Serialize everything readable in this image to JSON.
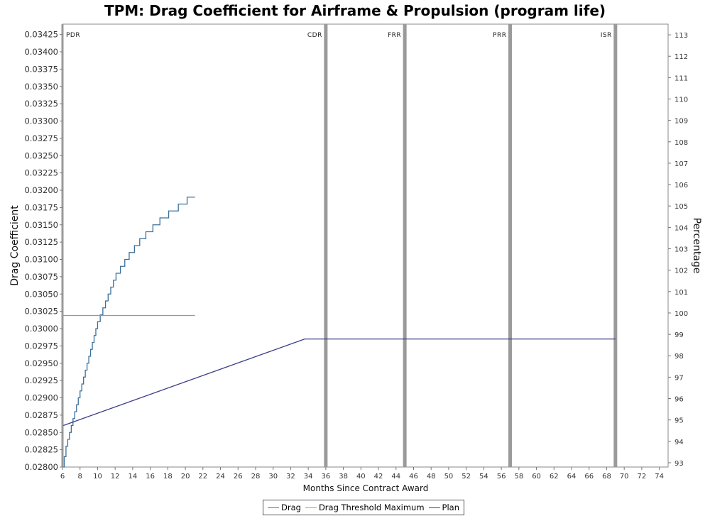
{
  "chart_data": {
    "type": "line",
    "title": "TPM: Drag Coefficient for Airframe & Propulsion (program life)",
    "xlabel": "Months Since Contract Award",
    "ylabel": "Drag Coefficient",
    "y2label": "Percentage",
    "xlim": [
      6,
      75
    ],
    "ylim": [
      0.028,
      0.0344
    ],
    "y2lim": [
      92.8,
      113.5
    ],
    "x_ticks": [
      6,
      8,
      10,
      12,
      14,
      16,
      18,
      20,
      22,
      24,
      26,
      28,
      30,
      32,
      34,
      36,
      38,
      40,
      42,
      44,
      46,
      48,
      50,
      52,
      54,
      56,
      58,
      60,
      62,
      64,
      66,
      68,
      70,
      72,
      74
    ],
    "y_ticks": [
      "0.02800",
      "0.02825",
      "0.02850",
      "0.02875",
      "0.02900",
      "0.02925",
      "0.02950",
      "0.02975",
      "0.03000",
      "0.03025",
      "0.03050",
      "0.03075",
      "0.03100",
      "0.03125",
      "0.03150",
      "0.03175",
      "0.03200",
      "0.03225",
      "0.03250",
      "0.03275",
      "0.03300",
      "0.03325",
      "0.03350",
      "0.03375",
      "0.03400",
      "0.03425"
    ],
    "y2_ticks": [
      93,
      94,
      95,
      96,
      97,
      98,
      99,
      100,
      101,
      102,
      103,
      104,
      105,
      106,
      107,
      108,
      109,
      110,
      111,
      112,
      113
    ],
    "grid": false,
    "legend_position": "bottom",
    "milestones": [
      {
        "label": "PDR",
        "x": 6
      },
      {
        "label": "CDR",
        "x": 36
      },
      {
        "label": "FRR",
        "x": 45
      },
      {
        "label": "PRR",
        "x": 57
      },
      {
        "label": "ISR",
        "x": 69
      }
    ],
    "series": [
      {
        "name": "Drag",
        "color": "#3a6f9a",
        "step": true,
        "x": [
          6.1,
          6.2,
          6.4,
          6.6,
          6.8,
          7.0,
          7.2,
          7.4,
          7.6,
          7.8,
          8.0,
          8.2,
          8.4,
          8.6,
          8.8,
          9.0,
          9.2,
          9.4,
          9.6,
          9.8,
          10.0,
          10.3,
          10.6,
          10.9,
          11.2,
          11.5,
          11.8,
          12.1,
          12.6,
          13.1,
          13.6,
          14.2,
          14.8,
          15.5,
          16.3,
          17.1,
          18.1,
          19.2,
          20.2,
          21.1
        ],
        "y": [
          0.028,
          0.02815,
          0.0283,
          0.0284,
          0.0285,
          0.0286,
          0.0287,
          0.0288,
          0.0289,
          0.029,
          0.0291,
          0.0292,
          0.0293,
          0.0294,
          0.0295,
          0.0296,
          0.0297,
          0.0298,
          0.0299,
          0.03,
          0.0301,
          0.0302,
          0.0303,
          0.0304,
          0.0305,
          0.0306,
          0.0307,
          0.0308,
          0.0309,
          0.031,
          0.0311,
          0.0312,
          0.0313,
          0.0314,
          0.0315,
          0.0316,
          0.0317,
          0.0318,
          0.0319,
          0.0319
        ]
      },
      {
        "name": "Drag Threshold Maximum",
        "color": "#e0882a",
        "x": [
          6.1,
          21.1
        ],
        "y": [
          0.03019,
          0.03019
        ]
      },
      {
        "name": "Plan",
        "color": "#3a3a8a",
        "x": [
          6.1,
          33.6,
          69.0
        ],
        "y": [
          0.0286,
          0.02985,
          0.02985
        ]
      }
    ]
  }
}
